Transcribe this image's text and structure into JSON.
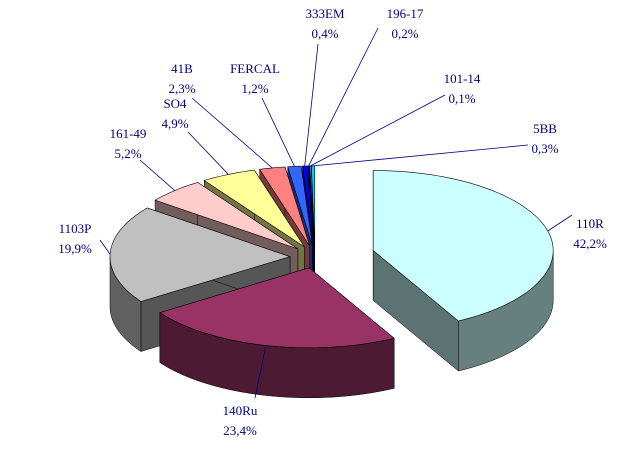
{
  "chart_data": {
    "type": "pie3d",
    "categories": [
      "110R",
      "140Ru",
      "1103P",
      "161-49",
      "SO4",
      "41B",
      "FERCAL",
      "333EM",
      "196-17",
      "101-14",
      "5BB"
    ],
    "values": [
      42.2,
      23.4,
      19.9,
      5.2,
      4.9,
      2.3,
      1.2,
      0.4,
      0.2,
      0.1,
      0.3
    ],
    "value_labels": [
      "42,2%",
      "23,4%",
      "19,9%",
      "5,2%",
      "4,9%",
      "2,3%",
      "1,2%",
      "0,4%",
      "0,2%",
      "0,1%",
      "0,3%"
    ],
    "colors": [
      "#ccffff",
      "#993366",
      "#c0c0c0",
      "#ffcccc",
      "#ffff99",
      "#ff8080",
      "#3366ff",
      "#0000ff",
      "#000080",
      "#ccccff",
      "#00ccff"
    ]
  }
}
